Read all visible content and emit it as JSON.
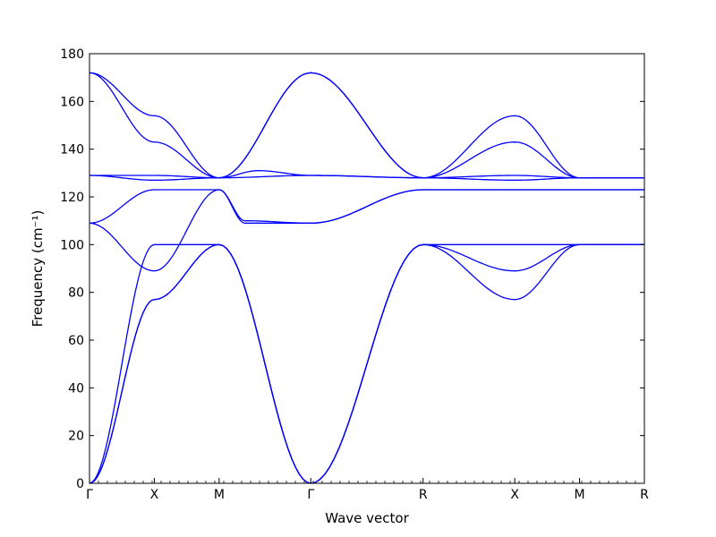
{
  "chart_data": {
    "type": "line",
    "xlabel": "Wave vector",
    "ylabel": "Frequency (cm⁻¹)",
    "ylim": [
      0,
      180
    ],
    "yticks": [
      0,
      20,
      40,
      60,
      80,
      100,
      120,
      140,
      160,
      180
    ],
    "x_path": [
      {
        "label": "Γ",
        "x": 0.0
      },
      {
        "label": "X",
        "x": 0.5
      },
      {
        "label": "M",
        "x": 1.0
      },
      {
        "label": "Γ",
        "x": 1.707
      },
      {
        "label": "R",
        "x": 2.573
      },
      {
        "label": "X",
        "x": 3.28
      },
      {
        "label": "M",
        "x": 3.78
      },
      {
        "label": "R",
        "x": 4.28
      }
    ],
    "xlim": [
      0,
      4.28
    ],
    "line_color": "#0000ff",
    "grid": false,
    "series": [
      {
        "points": [
          [
            0,
            0
          ],
          [
            0.5,
            77
          ],
          [
            1.0,
            100
          ],
          [
            1.707,
            0
          ],
          [
            2.573,
            100
          ],
          [
            3.28,
            77
          ],
          [
            3.78,
            100
          ],
          [
            4.28,
            100
          ]
        ]
      },
      {
        "points": [
          [
            0,
            0
          ],
          [
            0.5,
            77
          ],
          [
            1.0,
            100
          ],
          [
            1.707,
            0
          ],
          [
            2.573,
            100
          ],
          [
            3.28,
            89
          ],
          [
            3.78,
            100
          ],
          [
            4.28,
            100
          ]
        ]
      },
      {
        "points": [
          [
            0,
            0
          ],
          [
            0.5,
            100
          ],
          [
            1.0,
            100
          ],
          [
            1.707,
            0
          ],
          [
            2.573,
            100
          ],
          [
            3.28,
            100
          ],
          [
            3.78,
            100
          ],
          [
            4.28,
            100
          ]
        ]
      },
      {
        "points": [
          [
            0,
            109
          ],
          [
            0.5,
            89
          ],
          [
            1.0,
            123
          ],
          [
            1.2,
            109
          ],
          [
            1.707,
            109
          ],
          [
            2.573,
            123
          ],
          [
            3.28,
            123
          ],
          [
            3.78,
            123
          ],
          [
            4.28,
            123
          ]
        ]
      },
      {
        "points": [
          [
            0,
            109
          ],
          [
            0.5,
            123
          ],
          [
            1.0,
            123
          ],
          [
            1.2,
            110
          ],
          [
            1.707,
            109
          ],
          [
            2.573,
            123
          ],
          [
            3.28,
            123
          ],
          [
            3.78,
            123
          ],
          [
            4.28,
            123
          ]
        ]
      },
      {
        "points": [
          [
            0,
            129
          ],
          [
            0.5,
            129
          ],
          [
            1.0,
            128
          ],
          [
            1.707,
            129
          ],
          [
            2.573,
            128
          ],
          [
            3.28,
            127
          ],
          [
            3.78,
            128
          ],
          [
            4.28,
            128
          ]
        ]
      },
      {
        "points": [
          [
            0,
            129
          ],
          [
            0.5,
            127
          ],
          [
            1.0,
            128
          ],
          [
            1.3,
            131
          ],
          [
            1.707,
            129
          ],
          [
            2.573,
            128
          ],
          [
            3.28,
            129
          ],
          [
            3.78,
            128
          ],
          [
            4.28,
            128
          ]
        ]
      },
      {
        "points": [
          [
            0,
            172
          ],
          [
            0.5,
            154
          ],
          [
            1.0,
            128
          ],
          [
            1.707,
            172
          ],
          [
            2.573,
            128
          ],
          [
            3.28,
            154
          ],
          [
            3.78,
            128
          ],
          [
            4.28,
            128
          ]
        ]
      },
      {
        "points": [
          [
            0,
            172
          ],
          [
            0.5,
            143
          ],
          [
            1.0,
            128
          ],
          [
            1.707,
            172
          ],
          [
            2.573,
            128
          ],
          [
            3.28,
            143
          ],
          [
            3.78,
            128
          ],
          [
            4.28,
            128
          ]
        ]
      }
    ]
  }
}
